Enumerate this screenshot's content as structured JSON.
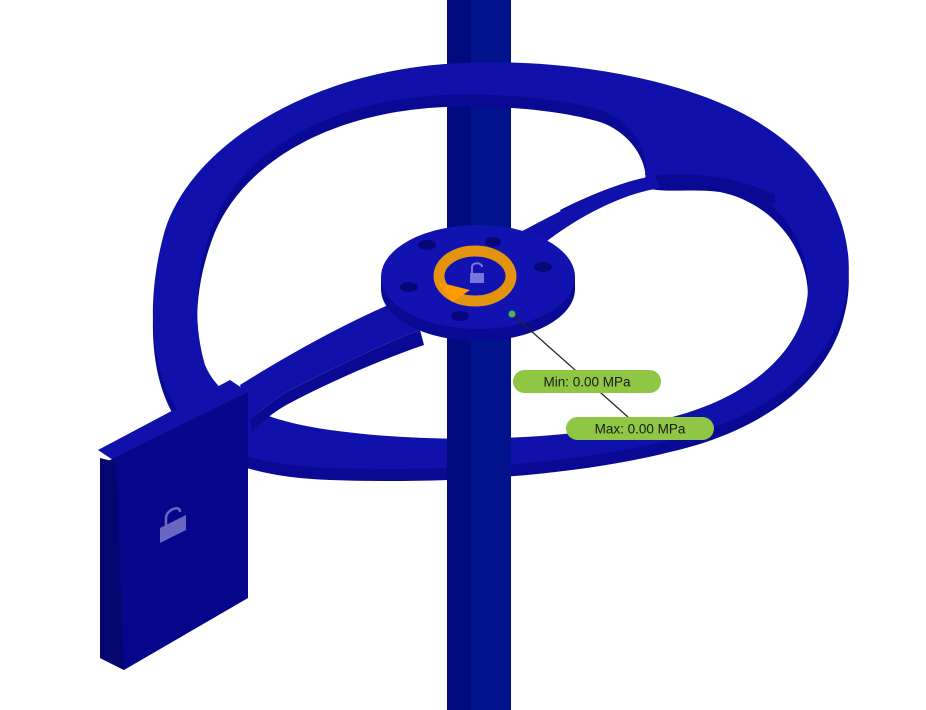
{
  "colors": {
    "background": "#ffffff",
    "model_face": "#1010aa",
    "model_side": "#090994",
    "shaft_dark": "#000a7c",
    "shaft_light": "#00128c",
    "rotation_arrow": "#f5a000",
    "label_fill": "#8fc643",
    "leader_line": "#222222"
  },
  "icons": {
    "rotation_icon": "rotation-arrow-icon",
    "constraint_icon": "lock-icon"
  },
  "labels": {
    "min_label": "Min: 0.00 MPa",
    "max_label": "Max: 0.00 MPa"
  }
}
